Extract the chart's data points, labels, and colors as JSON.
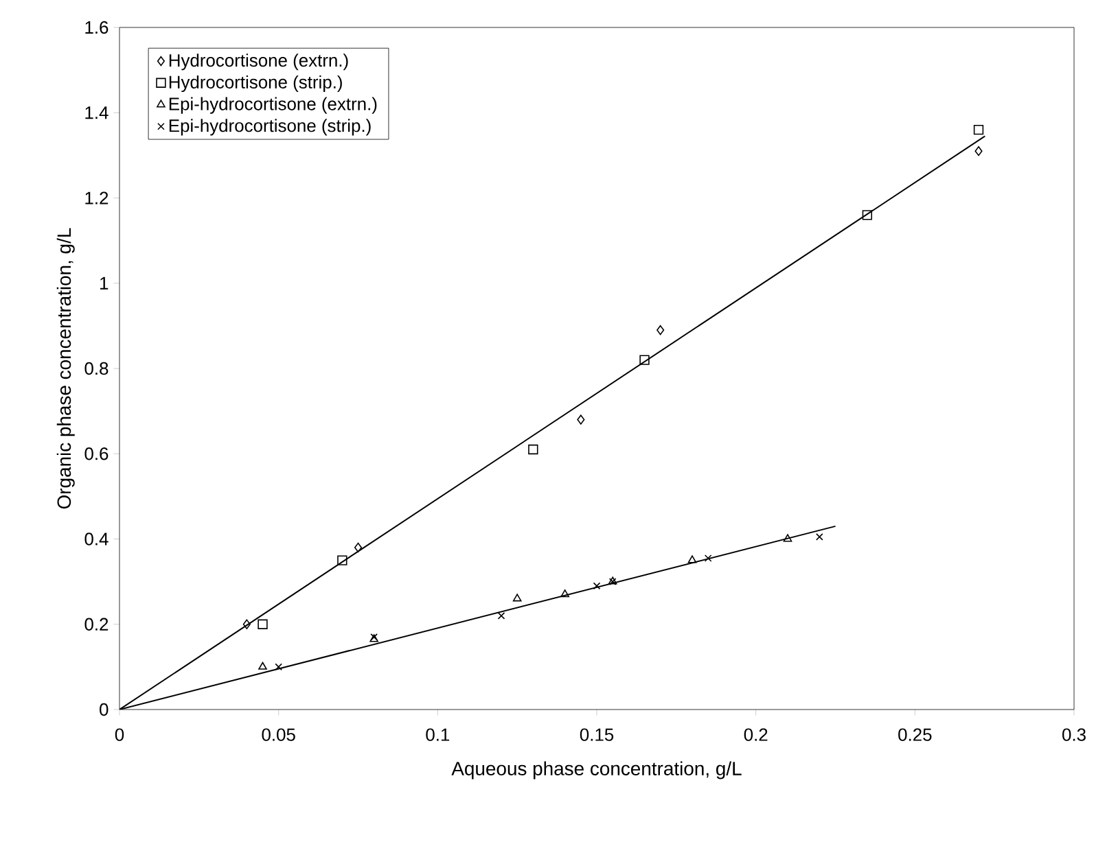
{
  "chart_data": {
    "type": "scatter",
    "xlabel": "Aqueous phase concentration, g/L",
    "ylabel": "Organic phase concentration, g/L",
    "xlim": [
      0,
      0.3
    ],
    "ylim": [
      0,
      1.6
    ],
    "xticks": [
      0,
      0.05,
      0.1,
      0.15,
      0.2,
      0.25,
      0.3
    ],
    "yticks": [
      0,
      0.2,
      0.4,
      0.6,
      0.8,
      1,
      1.2,
      1.4,
      1.6
    ],
    "grid": false,
    "legend": "top left",
    "series": [
      {
        "name": "Hydrocortisone (extrn.)",
        "color": "#000000",
        "marker": "diamond",
        "x": [
          0.04,
          0.075,
          0.145,
          0.17,
          0.27
        ],
        "values": [
          0.2,
          0.38,
          0.68,
          0.89,
          1.31
        ]
      },
      {
        "name": "Hydrocortisone (strip.)",
        "color": "#000000",
        "marker": "square",
        "x": [
          0.045,
          0.07,
          0.13,
          0.165,
          0.235,
          0.27
        ],
        "values": [
          0.2,
          0.35,
          0.61,
          0.82,
          1.16,
          1.36
        ]
      },
      {
        "name": "Epi-hydrocortisone (extrn.)",
        "color": "#000000",
        "marker": "triangle",
        "x": [
          0.045,
          0.08,
          0.125,
          0.14,
          0.155,
          0.18,
          0.21
        ],
        "values": [
          0.1,
          0.165,
          0.26,
          0.27,
          0.3,
          0.35,
          0.4
        ]
      },
      {
        "name": "Epi-hydrocortisone (strip.)",
        "color": "#000000",
        "marker": "cross",
        "x": [
          0.05,
          0.08,
          0.12,
          0.15,
          0.155,
          0.185,
          0.22
        ],
        "values": [
          0.1,
          0.17,
          0.22,
          0.29,
          0.3,
          0.355,
          0.405
        ]
      },
      {
        "type": "line",
        "color": "#000000",
        "marker": "none",
        "x": [
          0,
          0.272
        ],
        "values": [
          0,
          1.345
        ]
      },
      {
        "type": "line",
        "color": "#000000",
        "marker": "none",
        "x": [
          0,
          0.225
        ],
        "values": [
          0,
          0.43
        ]
      }
    ]
  }
}
